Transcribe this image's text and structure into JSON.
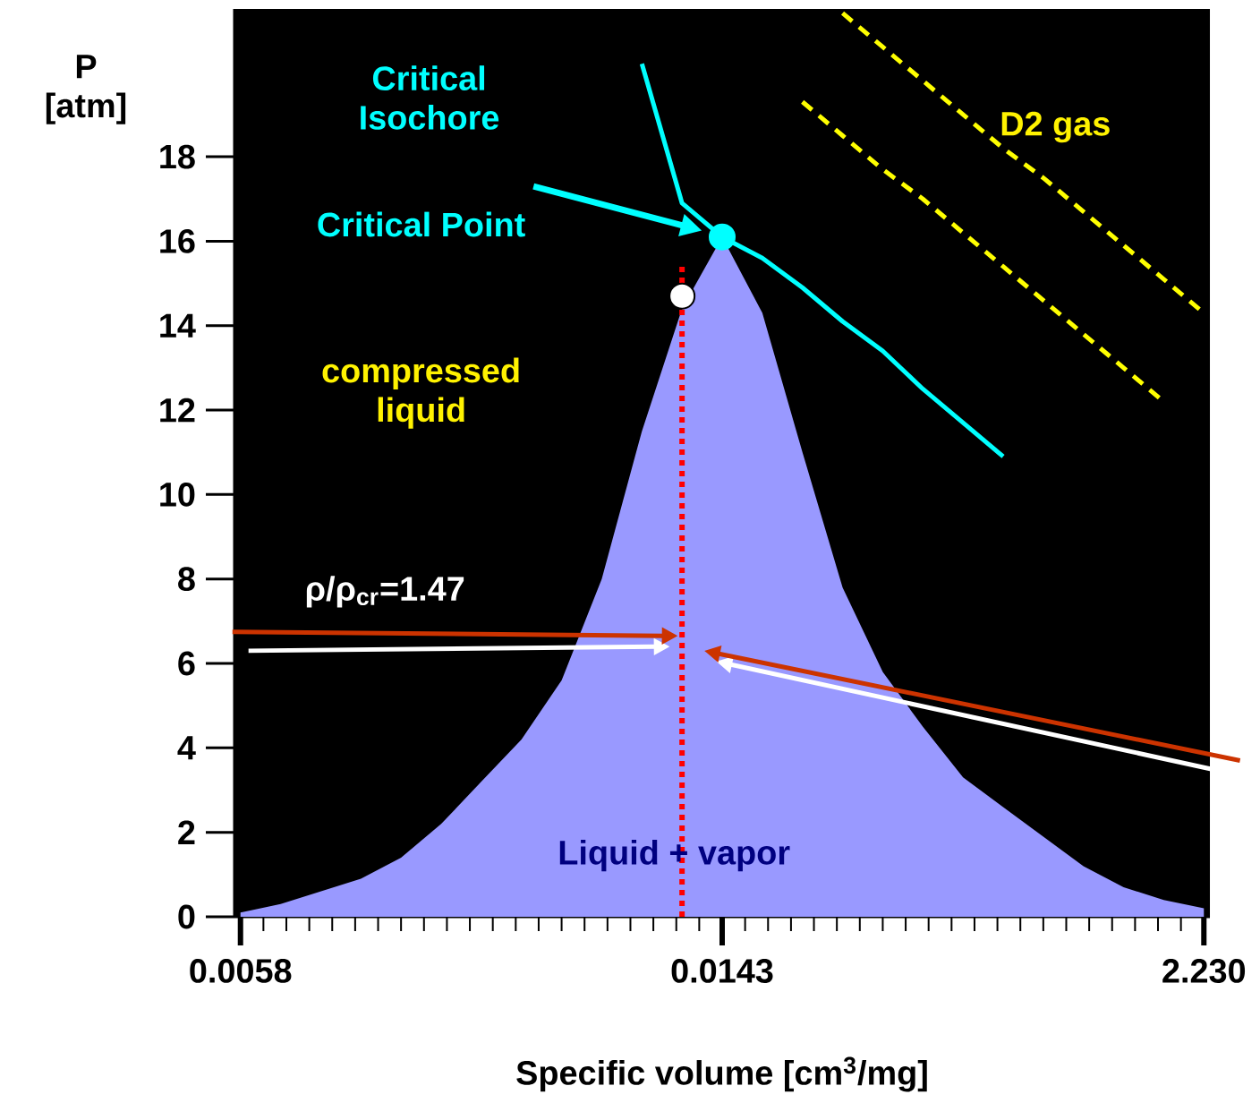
{
  "chart_data": {
    "type": "area",
    "xlabel": "Specific volume [cm$^{3}$/mg]",
    "ylabel": "P [atm]",
    "categories": [
      "0.0058",
      null,
      null,
      null,
      null,
      null,
      null,
      null,
      null,
      null,
      null,
      null,
      "0.0143",
      null,
      null,
      null,
      null,
      null,
      null,
      null,
      null,
      null,
      null,
      null,
      "2.230"
    ],
    "ylim": [
      0,
      21.5
    ],
    "yticks": [
      0,
      2,
      4,
      6,
      8,
      10,
      12,
      14,
      16,
      18
    ],
    "series": [
      {
        "color": "#9999ff",
        "values": [
          0.1,
          0.3,
          0.6,
          0.9,
          1.4,
          2.2,
          3.2,
          4.2,
          5.6,
          8.0,
          11.5,
          14.4,
          16.1,
          14.3,
          11.0,
          7.8,
          5.8,
          4.5,
          3.3,
          2.6,
          1.9,
          1.2,
          0.7,
          0.4,
          0.2
        ]
      },
      {
        "type": "line",
        "color": "#00ffff",
        "line_style": "solid",
        "values": [
          null,
          null,
          null,
          null,
          null,
          null,
          null,
          null,
          null,
          null,
          20.2,
          16.9,
          16.1,
          15.6,
          14.9,
          14.1,
          13.4,
          12.5,
          11.7,
          10.9,
          null,
          null,
          null,
          null,
          null
        ]
      },
      {
        "type": "line",
        "color": "#ffff00",
        "line_style": "dashed",
        "values": [
          null,
          null,
          null,
          null,
          null,
          null,
          null,
          null,
          null,
          null,
          null,
          null,
          null,
          null,
          null,
          21.4,
          20.6,
          19.8,
          19.0,
          18.2,
          17.5,
          16.7,
          15.9,
          15.1,
          14.3
        ]
      },
      {
        "type": "line",
        "color": "#ffff00",
        "line_style": "dashed",
        "values": [
          null,
          null,
          null,
          null,
          null,
          null,
          null,
          null,
          null,
          null,
          null,
          null,
          null,
          null,
          19.3,
          18.5,
          17.7,
          17.0,
          16.2,
          15.4,
          14.6,
          13.8,
          13.0,
          12.2,
          null
        ]
      },
      {
        "type": "scatter",
        "color": "#00ffff",
        "marker": "circle",
        "values": [
          null,
          null,
          null,
          null,
          null,
          null,
          null,
          null,
          null,
          null,
          null,
          null,
          16.1,
          null,
          null,
          null,
          null,
          null,
          null,
          null,
          null,
          null,
          null,
          null,
          null
        ]
      },
      {
        "type": "scatter",
        "color": "#ffffff",
        "marker": "circle",
        "values": [
          null,
          null,
          null,
          null,
          null,
          null,
          null,
          null,
          null,
          null,
          null,
          14.7,
          null,
          null,
          null,
          null,
          null,
          null,
          null,
          null,
          null,
          null,
          null,
          null,
          null
        ]
      }
    ],
    "annotations": [
      "Critical Isochore",
      "Critical Point",
      "compressed liquid",
      "D2 gas",
      "ρ/ρ$_{cr}$=1.47",
      "Liquid  +  vapor"
    ]
  }
}
